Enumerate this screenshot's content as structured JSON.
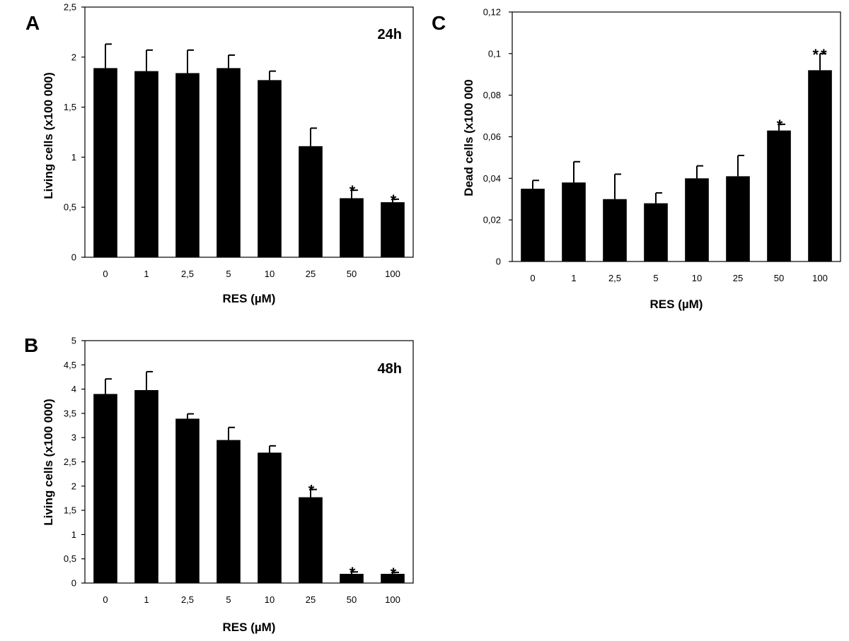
{
  "chart_data": [
    {
      "panel": "A",
      "type": "bar",
      "annotation": "24h",
      "xlabel": "RES (µM)",
      "ylabel": "Living cells (x100 000)",
      "categories": [
        "0",
        "1",
        "2,5",
        "5",
        "10",
        "25",
        "50",
        "100"
      ],
      "values": [
        1.89,
        1.86,
        1.84,
        1.89,
        1.77,
        1.11,
        0.59,
        0.55
      ],
      "errors": [
        0.24,
        0.21,
        0.23,
        0.13,
        0.09,
        0.18,
        0.08,
        0.03
      ],
      "significance": [
        "",
        "",
        "",
        "",
        "",
        "",
        "*",
        "*"
      ],
      "ylim": [
        0,
        2.5
      ],
      "yticks": [
        "0",
        "0,5",
        "1",
        "1,5",
        "2",
        "2,5"
      ],
      "grid": false
    },
    {
      "panel": "B",
      "type": "bar",
      "annotation": "48h",
      "xlabel": "RES (µM)",
      "ylabel": "Living cells (x100 000)",
      "categories": [
        "0",
        "1",
        "2,5",
        "5",
        "10",
        "25",
        "50",
        "100"
      ],
      "values": [
        3.9,
        3.98,
        3.39,
        2.95,
        2.69,
        1.77,
        0.19,
        0.19
      ],
      "errors": [
        0.31,
        0.38,
        0.1,
        0.26,
        0.14,
        0.16,
        0.04,
        0.03
      ],
      "significance": [
        "",
        "",
        "",
        "",
        "",
        "*",
        "*",
        "*"
      ],
      "ylim": [
        0,
        5
      ],
      "yticks": [
        "0",
        "0,5",
        "1",
        "1,5",
        "2",
        "2,5",
        "3",
        "3,5",
        "4",
        "4,5",
        "5"
      ],
      "grid": false
    },
    {
      "panel": "C",
      "type": "bar",
      "annotation": "",
      "xlabel": "RES (µM)",
      "ylabel": "Dead cells (x100 000",
      "categories": [
        "0",
        "1",
        "2,5",
        "5",
        "10",
        "25",
        "50",
        "100"
      ],
      "values": [
        0.035,
        0.038,
        0.03,
        0.028,
        0.04,
        0.041,
        0.063,
        0.092
      ],
      "errors": [
        0.004,
        0.01,
        0.012,
        0.005,
        0.006,
        0.01,
        0.003,
        0.008
      ],
      "significance": [
        "",
        "",
        "",
        "",
        "",
        "",
        "*",
        "**"
      ],
      "ylim": [
        0,
        0.12
      ],
      "yticks": [
        "0",
        "0,02",
        "0,04",
        "0,06",
        "0,08",
        "0,1",
        "0,12"
      ],
      "grid": false
    }
  ]
}
